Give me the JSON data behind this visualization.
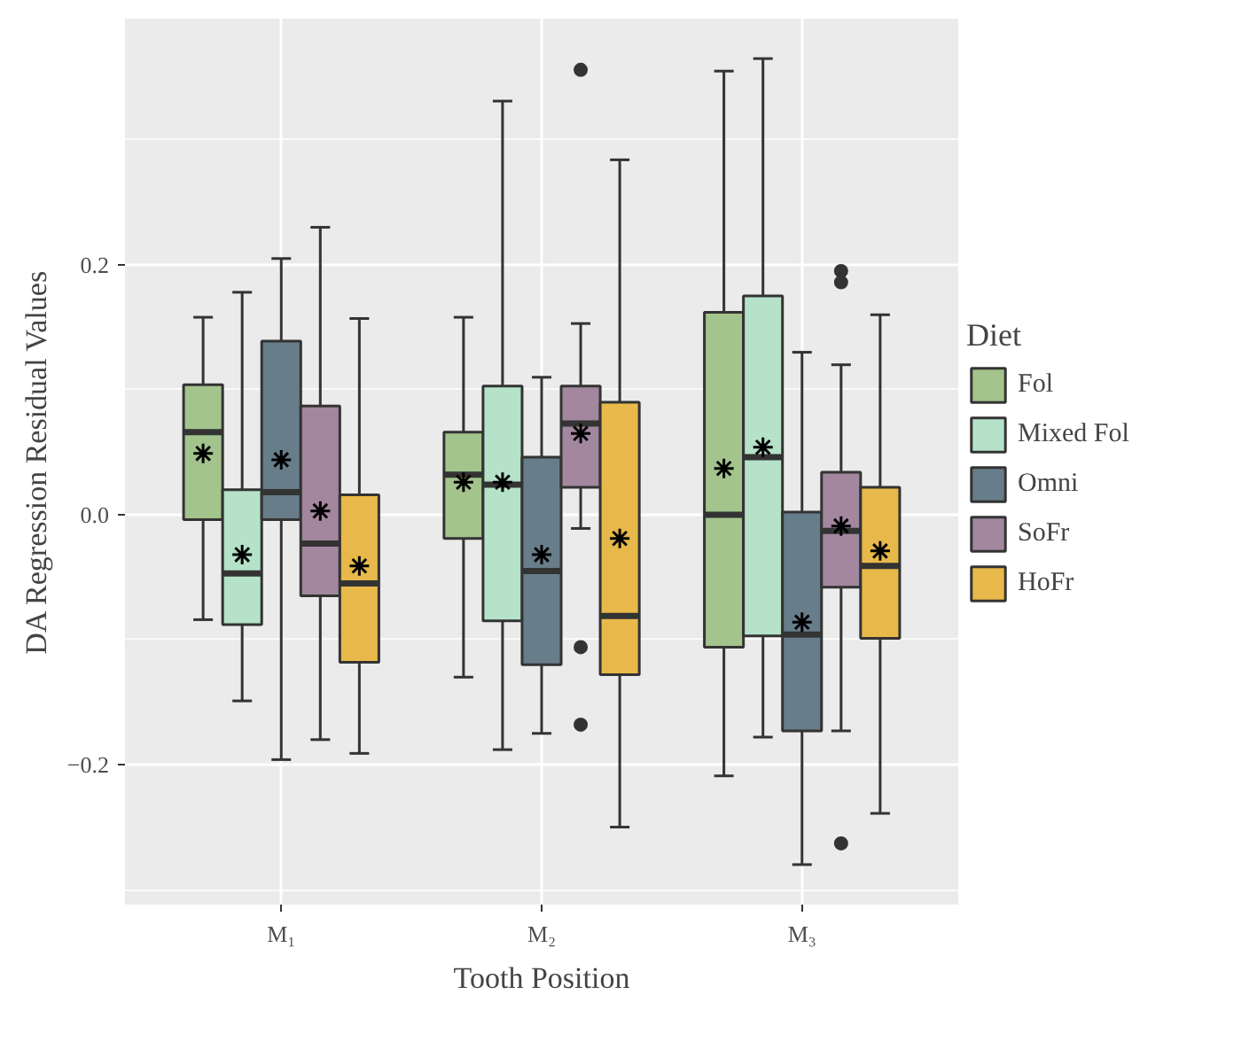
{
  "chart_data": {
    "type": "box",
    "xlabel": "Tooth Position",
    "ylabel": "DA Regression Residual Values",
    "legend_title": "Diet",
    "legend": "right",
    "categories": [
      "M₁",
      "M₂",
      "M₃"
    ],
    "ylim": [
      -0.312,
      0.397
    ],
    "yticks": [
      -0.2,
      {
        "value": 0.0,
        "label": "0.0"
      },
      0.2
    ],
    "grid": true,
    "series": [
      {
        "name": "Fol",
        "color": "#a3c48c",
        "boxes": [
          {
            "low": -0.084,
            "q1": -0.004,
            "median": 0.066,
            "q3": 0.104,
            "high": 0.158,
            "mean": 0.049
          },
          {
            "low": -0.13,
            "q1": -0.019,
            "median": 0.032,
            "q3": 0.066,
            "high": 0.158,
            "mean": 0.026
          },
          {
            "low": -0.209,
            "q1": -0.106,
            "median": 0.0,
            "q3": 0.162,
            "high": 0.355,
            "mean": 0.037
          }
        ]
      },
      {
        "name": "Mixed Fol",
        "color": "#b5e2c8",
        "boxes": [
          {
            "low": -0.149,
            "q1": -0.088,
            "median": -0.047,
            "q3": 0.02,
            "high": 0.178,
            "mean": -0.032
          },
          {
            "low": -0.188,
            "q1": -0.085,
            "median": 0.024,
            "q3": 0.103,
            "high": 0.331,
            "mean": 0.026
          },
          {
            "low": -0.178,
            "q1": -0.097,
            "median": 0.046,
            "q3": 0.175,
            "high": 0.365,
            "mean": 0.054
          }
        ]
      },
      {
        "name": "Omni",
        "color": "#687d8a",
        "boxes": [
          {
            "low": -0.196,
            "q1": -0.004,
            "median": 0.018,
            "q3": 0.139,
            "high": 0.205,
            "mean": 0.044
          },
          {
            "low": -0.175,
            "q1": -0.12,
            "median": -0.045,
            "q3": 0.046,
            "high": 0.11,
            "mean": -0.032
          },
          {
            "low": -0.28,
            "q1": -0.173,
            "median": -0.096,
            "q3": 0.002,
            "high": 0.13,
            "mean": -0.086
          }
        ]
      },
      {
        "name": "SoFr",
        "color": "#a2879f",
        "boxes": [
          {
            "low": -0.18,
            "q1": -0.065,
            "median": -0.023,
            "q3": 0.087,
            "high": 0.23,
            "mean": 0.003
          },
          {
            "low": -0.011,
            "q1": 0.022,
            "median": 0.073,
            "q3": 0.103,
            "high": 0.153,
            "mean": 0.065,
            "outliers": [
              0.356,
              -0.106,
              -0.168
            ]
          },
          {
            "low": -0.173,
            "q1": -0.058,
            "median": -0.013,
            "q3": 0.034,
            "high": 0.12,
            "mean": -0.009,
            "outliers": [
              0.195,
              0.186,
              -0.263
            ]
          }
        ]
      },
      {
        "name": "HoFr",
        "color": "#e8b94a",
        "boxes": [
          {
            "low": -0.191,
            "q1": -0.118,
            "median": -0.055,
            "q3": 0.016,
            "high": 0.157,
            "mean": -0.041
          },
          {
            "low": -0.25,
            "q1": -0.128,
            "median": -0.081,
            "q3": 0.09,
            "high": 0.284,
            "mean": -0.019
          },
          {
            "low": -0.239,
            "q1": -0.099,
            "median": -0.041,
            "q3": 0.022,
            "high": 0.16,
            "mean": -0.029
          }
        ]
      }
    ]
  }
}
